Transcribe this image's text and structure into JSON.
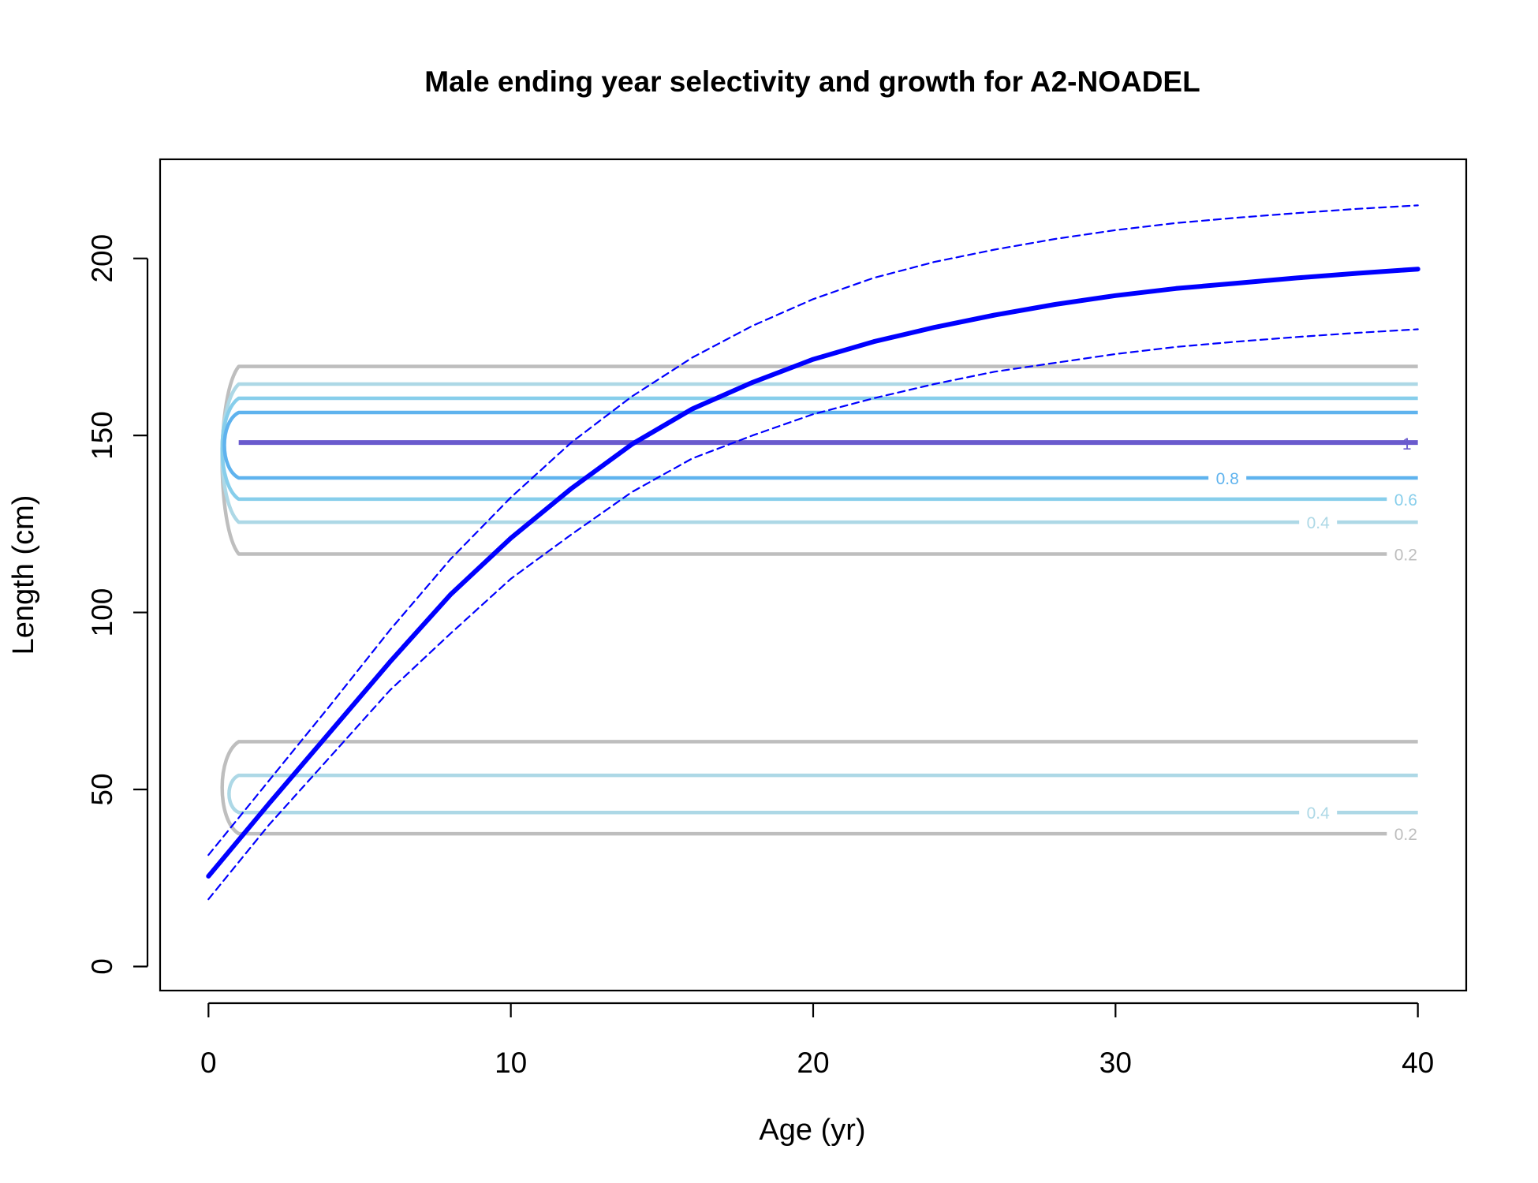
{
  "chart_data": {
    "type": "line",
    "title": "Male ending year selectivity and growth for A2-NOADEL",
    "xlabel": "Age (yr)",
    "ylabel": "Length (cm)",
    "xlim": [
      -1.6,
      41.6
    ],
    "ylim": [
      -6.8,
      228
    ],
    "x_ticks": [
      0,
      10,
      20,
      30,
      40
    ],
    "y_ticks": [
      0,
      50,
      100,
      150,
      200
    ],
    "grid": false,
    "legend": "none",
    "colors": {
      "mean_growth": "#0000ff",
      "interval": "#0000ff",
      "c02": "#bebebe",
      "c04": "#add8e6",
      "c06": "#87ceeb",
      "c08": "#5fb3ee",
      "peak": "#6a5acd"
    },
    "series": [
      {
        "x": [
          0,
          2,
          4,
          6,
          8,
          10,
          12,
          14,
          16,
          18,
          20,
          22,
          24,
          26,
          28,
          30,
          32,
          34,
          36,
          38,
          40
        ],
        "values": [
          25.5,
          46.0,
          66.0,
          86.0,
          105.0,
          121.0,
          135.0,
          147.5,
          157.5,
          165.0,
          171.5,
          176.5,
          180.5,
          184.0,
          187.0,
          189.5,
          191.5,
          193.0,
          194.5,
          195.8,
          197.0
        ]
      },
      {
        "x": [
          0,
          2,
          4,
          6,
          8,
          10,
          12,
          14,
          16,
          18,
          20,
          22,
          24,
          26,
          28,
          30,
          32,
          34,
          36,
          38,
          40
        ],
        "values": [
          31.5,
          52.5,
          73.5,
          95.0,
          115.0,
          132.5,
          148.0,
          161.0,
          172.0,
          181.0,
          188.5,
          194.5,
          199.0,
          202.5,
          205.5,
          208.0,
          210.0,
          211.5,
          212.8,
          214.0,
          215.0
        ]
      },
      {
        "x": [
          0,
          2,
          4,
          6,
          8,
          10,
          12,
          14,
          16,
          18,
          20,
          22,
          24,
          26,
          28,
          30,
          32,
          34,
          36,
          38,
          40
        ],
        "values": [
          19.0,
          40.0,
          59.0,
          78.0,
          94.0,
          109.5,
          122.0,
          134.0,
          143.5,
          150.0,
          156.0,
          160.5,
          164.5,
          168.0,
          170.5,
          173.0,
          175.0,
          176.5,
          177.8,
          179.0,
          180.0
        ]
      }
    ],
    "contours": [
      {
        "level": 0.2,
        "lower": 116.5,
        "upper": 169.5,
        "label": "0.2",
        "label_x": 39.6,
        "color": "#bebebe"
      },
      {
        "level": 0.4,
        "lower": 125.5,
        "upper": 164.5,
        "label": "0.4",
        "label_x": 36.7,
        "color": "#add8e6"
      },
      {
        "level": 0.6,
        "lower": 132.0,
        "upper": 160.5,
        "label": "0.6",
        "label_x": 39.6,
        "color": "#87ceeb"
      },
      {
        "level": 0.8,
        "lower": 138.0,
        "upper": 156.5,
        "label": "0.8",
        "label_x": 33.7,
        "color": "#5fb3ee"
      },
      {
        "level": 0.2,
        "lower": 37.5,
        "upper": 63.5,
        "label": "0.2",
        "label_x": 39.6,
        "color": "#bebebe"
      },
      {
        "level": 0.4,
        "lower": 43.5,
        "upper": 54.0,
        "label": "0.4",
        "label_x": 36.7,
        "color": "#add8e6"
      }
    ],
    "peak": {
      "y": 148.0,
      "label": "1",
      "color": "#6a5acd"
    },
    "contour_x_start": 1.0,
    "contour_x_end": 40.0
  }
}
